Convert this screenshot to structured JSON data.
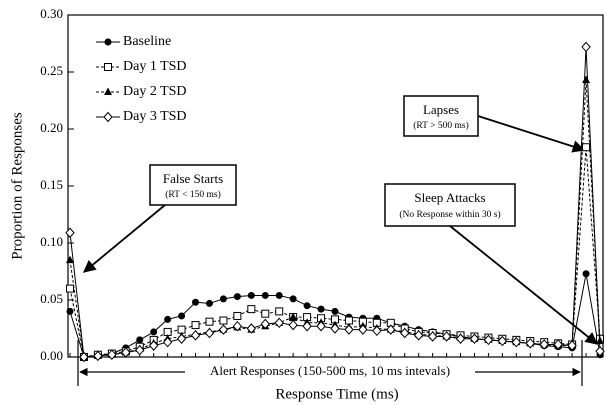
{
  "chart_data": {
    "type": "line",
    "x_label": "Response Time (ms)",
    "y_label": "Proportion of Responses",
    "categories": [
      null,
      null,
      null,
      null,
      null,
      null,
      null,
      null,
      null,
      null,
      null,
      null,
      null,
      null,
      null,
      null,
      null,
      null,
      null,
      null,
      null,
      null,
      null,
      null,
      null,
      null,
      null,
      null,
      null,
      null,
      null,
      null,
      null,
      null,
      null,
      null,
      null,
      null,
      null
    ],
    "series": [
      {
        "name": "Baseline",
        "color": "#000000",
        "marker": "circle",
        "dashed": false,
        "values": [
          0.04,
          0.0,
          0.001,
          0.003,
          0.008,
          0.015,
          0.022,
          0.033,
          0.036,
          0.048,
          0.047,
          0.051,
          0.053,
          0.054,
          0.054,
          0.054,
          0.051,
          0.045,
          0.042,
          0.04,
          0.035,
          0.034,
          0.034,
          0.03,
          0.027,
          0.024,
          0.022,
          0.02,
          0.018,
          0.016,
          0.015,
          0.014,
          0.013,
          0.012,
          0.01,
          0.009,
          0.008,
          0.073,
          0.002
        ]
      },
      {
        "name": "Day 1 TSD",
        "color": "#000000",
        "marker": "square",
        "dashed": true,
        "values": [
          0.06,
          0.0,
          0.002,
          0.003,
          0.005,
          0.009,
          0.015,
          0.022,
          0.024,
          0.028,
          0.031,
          0.032,
          0.036,
          0.042,
          0.038,
          0.04,
          0.035,
          0.035,
          0.034,
          0.033,
          0.032,
          0.031,
          0.03,
          0.03,
          0.025,
          0.022,
          0.021,
          0.02,
          0.019,
          0.018,
          0.017,
          0.016,
          0.015,
          0.014,
          0.013,
          0.012,
          0.011,
          0.184,
          0.016
        ]
      },
      {
        "name": "Day 2 TSD",
        "color": "#000000",
        "marker": "triangle",
        "dashed": true,
        "values": [
          0.085,
          0.0,
          0.001,
          0.002,
          0.004,
          0.007,
          0.012,
          0.016,
          0.018,
          0.02,
          0.022,
          0.024,
          0.026,
          0.024,
          0.027,
          0.03,
          0.035,
          0.03,
          0.03,
          0.028,
          0.026,
          0.027,
          0.025,
          0.024,
          0.022,
          0.02,
          0.019,
          0.018,
          0.017,
          0.016,
          0.015,
          0.014,
          0.013,
          0.012,
          0.011,
          0.01,
          0.01,
          0.243,
          0.014
        ]
      },
      {
        "name": "Day 3 TSD",
        "color": "#000000",
        "marker": "diamond",
        "dashed": false,
        "values": [
          0.109,
          0.0,
          0.001,
          0.002,
          0.004,
          0.006,
          0.01,
          0.013,
          0.016,
          0.019,
          0.021,
          0.024,
          0.027,
          0.025,
          0.029,
          0.03,
          0.028,
          0.027,
          0.027,
          0.025,
          0.024,
          0.024,
          0.023,
          0.024,
          0.021,
          0.019,
          0.018,
          0.018,
          0.016,
          0.016,
          0.015,
          0.014,
          0.013,
          0.012,
          0.011,
          0.011,
          0.01,
          0.272,
          0.005
        ]
      }
    ],
    "ylim": [
      0,
      0.3
    ],
    "yticks": [
      {
        "value": 0,
        "label": "0.00"
      },
      {
        "value": 0.05,
        "label": "0.05"
      },
      {
        "value": 0.1,
        "label": "0.10"
      },
      {
        "value": 0.15,
        "label": "0.15"
      },
      {
        "value": 0.2,
        "label": "0.20"
      },
      {
        "value": 0.25,
        "label": "0.25"
      },
      {
        "value": 0.3,
        "label": "0.30"
      }
    ],
    "legend": "upper left",
    "annotations": [
      {
        "title": "False Starts",
        "note": "(RT < 150 ms)"
      },
      {
        "title": "Lapses",
        "note": "(RT > 500 ms)"
      },
      {
        "title": "Sleep Attacks",
        "note": "(No Response within 30 s)"
      }
    ],
    "range_label": "Alert Responses (150-500 ms, 10 ms intevals)"
  }
}
